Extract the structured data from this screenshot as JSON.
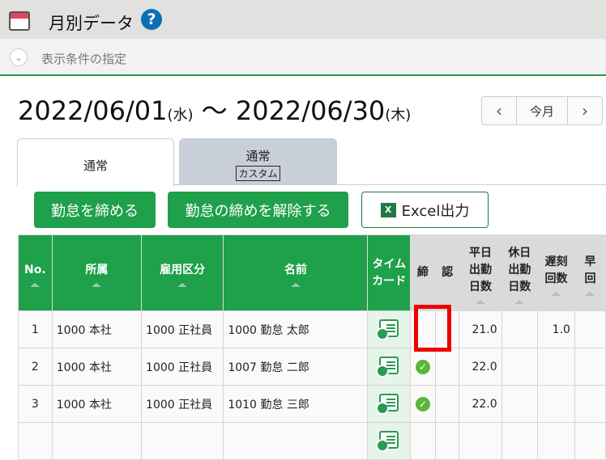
{
  "header": {
    "title": "月別データ",
    "help_icon": "question-circle-icon"
  },
  "filter": {
    "label": "表示条件の指定"
  },
  "period": {
    "start": "2022/06/01",
    "start_day": "(水)",
    "sep": "〜",
    "end": "2022/06/30",
    "end_day": "(木)"
  },
  "nav": {
    "prev": "‹",
    "current": "今月",
    "next": "›"
  },
  "tabs": [
    {
      "label": "通常"
    },
    {
      "label": "通常",
      "tag": "カスタム"
    }
  ],
  "actions": {
    "close": "勤怠を締める",
    "unclose": "勤怠の締めを解除する",
    "excel": "Excel出力"
  },
  "colors": {
    "accent": "#1fa04a",
    "highlight": "#e00000"
  },
  "table": {
    "headers": [
      "No.",
      "所属",
      "雇用区分",
      "名前",
      "タイム\nカード",
      "締",
      "認",
      "平日\n出勤\n日数",
      "休日\n出勤\n日数",
      "遅刻\n回数",
      "早\n回"
    ],
    "rows": [
      {
        "no": "1",
        "dept": "1000 本社",
        "type": "1000 正社員",
        "name": "1000 勤怠 太郎",
        "closed": false,
        "weekday": "21.0",
        "holiday": "",
        "late": "1.0"
      },
      {
        "no": "2",
        "dept": "1000 本社",
        "type": "1000 正社員",
        "name": "1007 勤怠 二郎",
        "closed": true,
        "weekday": "22.0",
        "holiday": "",
        "late": ""
      },
      {
        "no": "3",
        "dept": "1000 本社",
        "type": "1000 正社員",
        "name": "1010 勤怠 三郎",
        "closed": true,
        "weekday": "22.0",
        "holiday": "",
        "late": ""
      }
    ]
  }
}
